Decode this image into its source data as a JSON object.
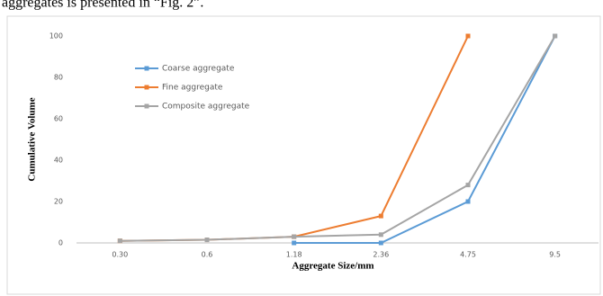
{
  "context_text": "aggregates is presented in “Fig. 2”.",
  "chart_data": {
    "type": "line",
    "categories": [
      "0.30",
      "0.6",
      "1.18",
      "2.36",
      "4.75",
      "9.5"
    ],
    "series": [
      {
        "name": "Coarse aggregate",
        "color": "#5b9bd5",
        "values": [
          null,
          null,
          0,
          0,
          20,
          100
        ]
      },
      {
        "name": "Fine aggregate",
        "color": "#ed7d31",
        "values": [
          1,
          1.5,
          3,
          13,
          100,
          null
        ]
      },
      {
        "name": "Composite aggregate",
        "color": "#a5a5a5",
        "values": [
          1,
          1.5,
          3,
          4,
          28,
          100
        ]
      }
    ],
    "ylim": [
      0,
      100
    ],
    "yticks": [
      0,
      20,
      40,
      60,
      80,
      100
    ],
    "x_label": "Aggregate Size/mm",
    "y_label": "Cumulative Volume",
    "grid": false
  }
}
